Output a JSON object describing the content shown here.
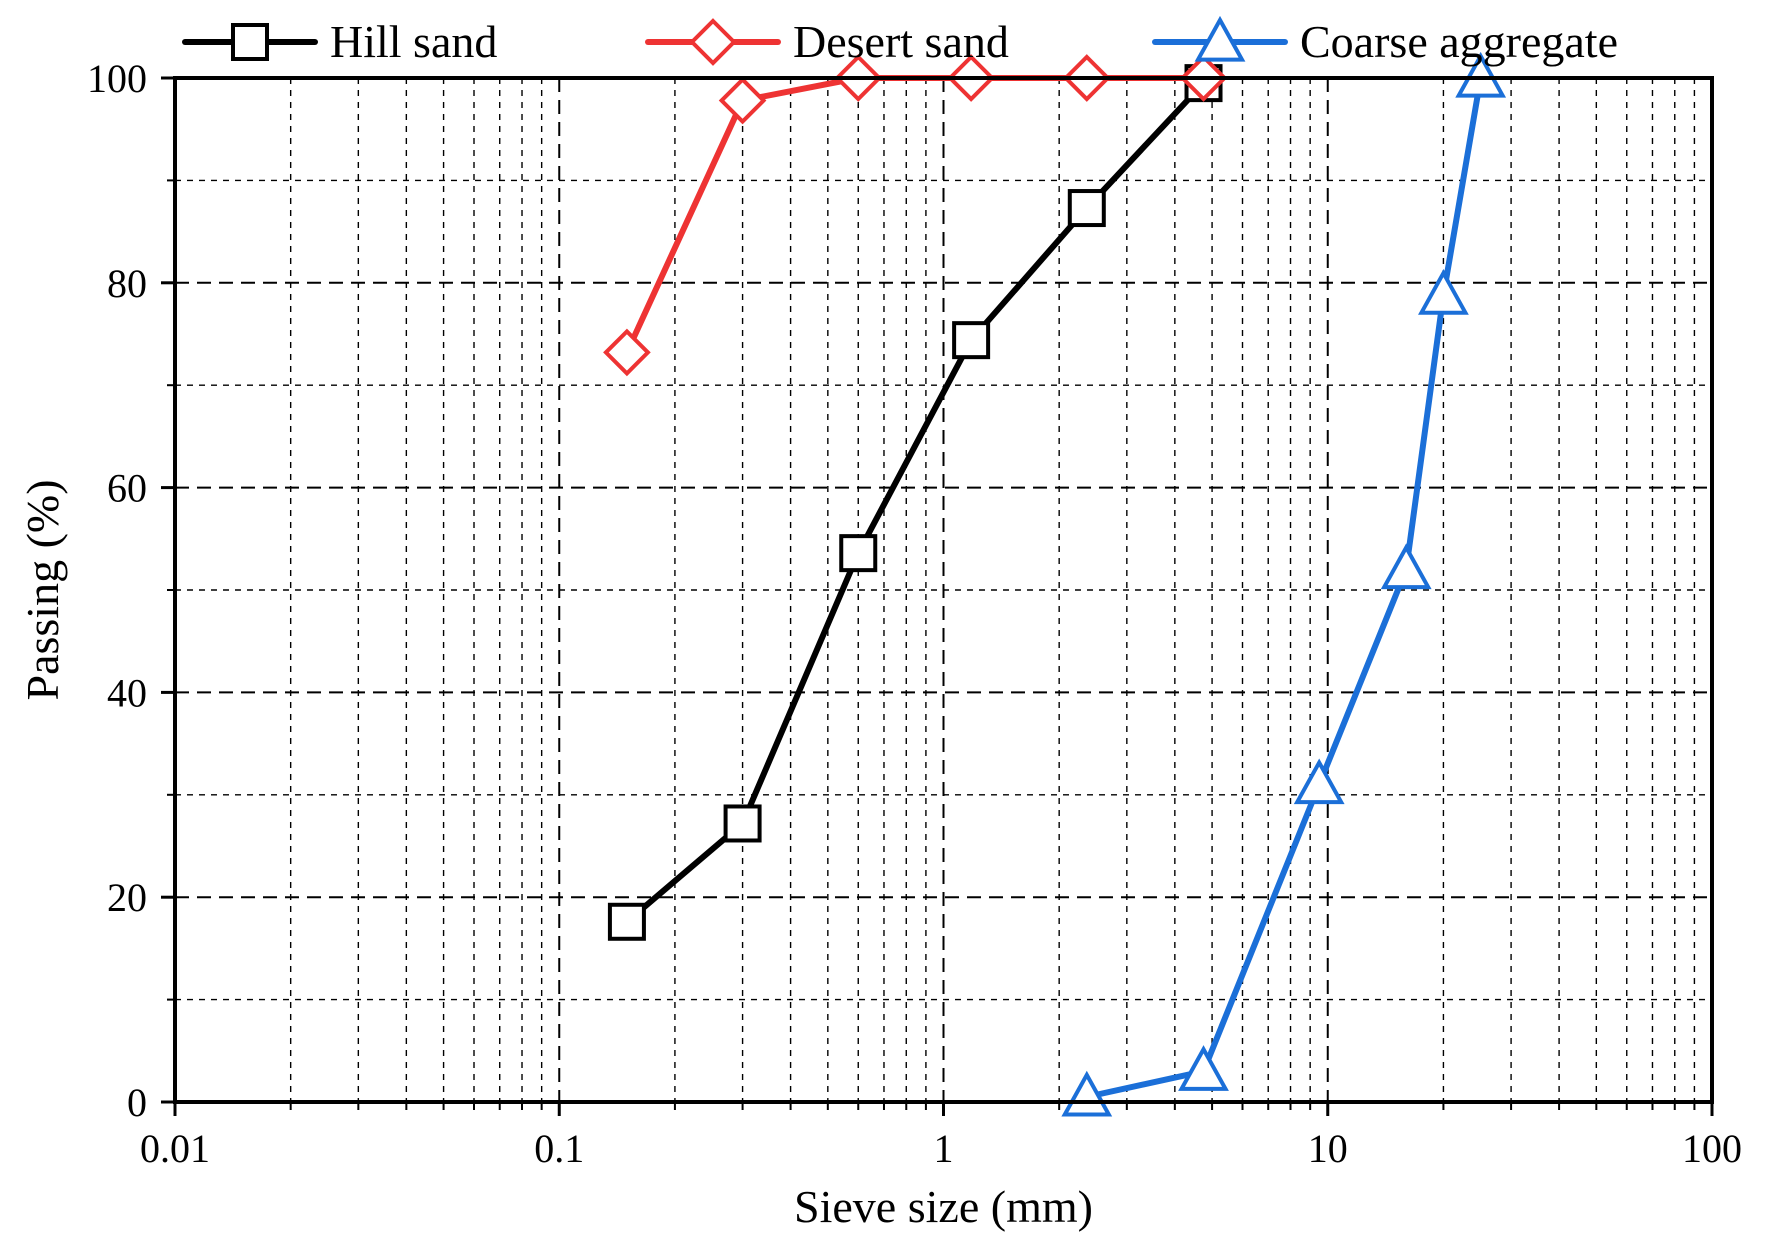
{
  "chart_data": {
    "type": "line",
    "xscale": "log",
    "xlim": [
      0.01,
      100
    ],
    "ylim": [
      0,
      100
    ],
    "xlabel": "Sieve size (mm)",
    "ylabel": "Passing (%)",
    "xticks": [
      "0.01",
      "0.1",
      "1",
      "10",
      "100"
    ],
    "yticks": [
      "0",
      "20",
      "40",
      "60",
      "80",
      "100"
    ],
    "grid": true,
    "legend_position": "top",
    "series": [
      {
        "name": "Hill sand",
        "color": "#000000",
        "marker": "square",
        "points": [
          {
            "x": 0.15,
            "y": 17.6
          },
          {
            "x": 0.3,
            "y": 27.2
          },
          {
            "x": 0.6,
            "y": 53.6
          },
          {
            "x": 1.18,
            "y": 74.4
          },
          {
            "x": 2.36,
            "y": 87.3
          },
          {
            "x": 4.75,
            "y": 99.5
          }
        ]
      },
      {
        "name": "Desert sand",
        "color": "#ee3333",
        "marker": "diamond",
        "points": [
          {
            "x": 0.15,
            "y": 73.2
          },
          {
            "x": 0.3,
            "y": 97.8
          },
          {
            "x": 0.6,
            "y": 100
          },
          {
            "x": 1.18,
            "y": 100
          },
          {
            "x": 2.36,
            "y": 100
          },
          {
            "x": 4.75,
            "y": 100
          }
        ]
      },
      {
        "name": "Coarse aggregate",
        "color": "#1b6fd8",
        "marker": "triangle",
        "points": [
          {
            "x": 2.36,
            "y": 0.5
          },
          {
            "x": 4.75,
            "y": 3.0
          },
          {
            "x": 9.5,
            "y": 31.0
          },
          {
            "x": 16,
            "y": 52.0
          },
          {
            "x": 20,
            "y": 78.8
          },
          {
            "x": 25,
            "y": 100
          }
        ]
      }
    ]
  }
}
